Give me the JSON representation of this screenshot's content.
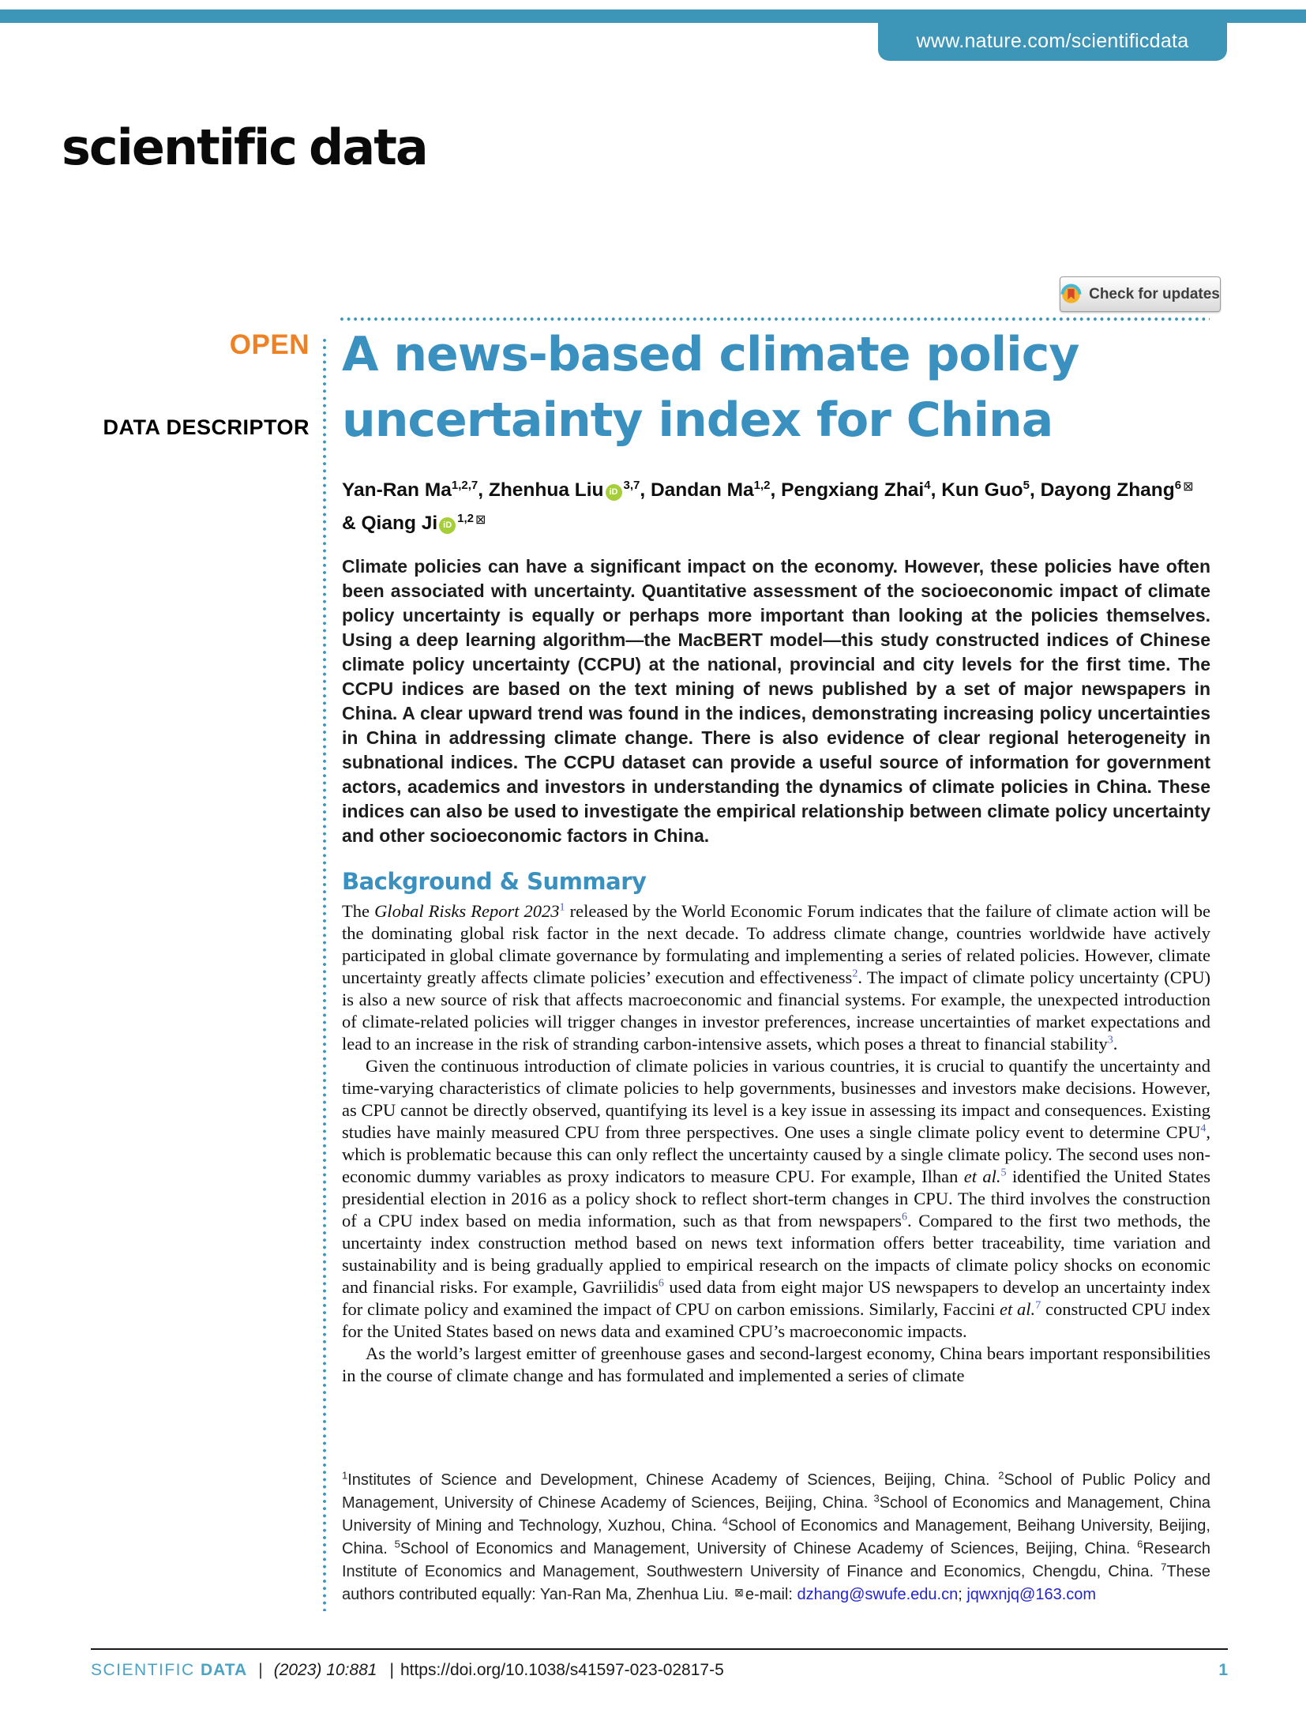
{
  "colors": {
    "brand_teal": "#3d95b8",
    "title_blue": "#3a90be",
    "open_orange": "#f08122",
    "citation_blue": "#4a5fbe",
    "email_link_blue": "#2424cc",
    "orcid_green": "#a6ce39",
    "footer_teal": "#4aa3c4"
  },
  "masthead": {
    "url": "www.nature.com/scientificdata"
  },
  "logo": {
    "word1": "scientific",
    "word2": "data"
  },
  "badges": {
    "check_for_updates": "Check for updates"
  },
  "icons": {
    "orcid": "iD",
    "envelope": "⊠"
  },
  "article": {
    "access": "OPEN",
    "type": "DATA DESCRIPTOR",
    "title_line1": "A news-based climate policy",
    "title_line2": "uncertainty index for China",
    "authors": [
      {
        "name": "Yan-Ran Ma",
        "sup": "1,2,7",
        "sep": ", "
      },
      {
        "name": "Zhenhua Liu",
        "sup": "3,7",
        "sep": ", "
      },
      {
        "name": "Dandan Ma",
        "sup": "1,2",
        "sep": ", "
      },
      {
        "name": "Pengxiang Zhai",
        "sup": "4",
        "sep": ", "
      },
      {
        "name": "Kun Guo",
        "sup": "5",
        "sep": ", "
      },
      {
        "name": "Dayong Zhang",
        "sup": "6",
        "sep": " & "
      },
      {
        "name": "Qiang Ji",
        "sup": "1,2",
        "sep": ""
      }
    ],
    "abstract": "Climate policies can have a significant impact on the economy. However, these policies have often been associated with uncertainty. Quantitative assessment of the socioeconomic impact of climate policy uncertainty is equally or perhaps more important than looking at the policies themselves. Using a deep learning algorithm—the MacBERT model—this study constructed indices of Chinese climate policy uncertainty (CCPU) at the national, provincial and city levels for the first time. The CCPU indices are based on the text mining of news published by a set of major newspapers in China. A clear upward trend was found in the indices, demonstrating increasing policy uncertainties in China in addressing climate change. There is also evidence of clear regional heterogeneity in subnational indices. The CCPU dataset can provide a useful source of information for government actors, academics and investors in understanding the dynamics of climate policies in China. These indices can also be used to investigate the empirical relationship between climate policy uncertainty and other socioeconomic factors in China.",
    "section_heading": "Background & Summary",
    "paragraphs": {
      "p1": [
        {
          "t": "The "
        },
        {
          "t": "Global Risks Report 2023",
          "k": "i"
        },
        {
          "t": "1",
          "k": "sup"
        },
        {
          "t": " released by the World Economic Forum indicates that the failure of climate action will be the dominating global risk factor in the next decade. To address climate change, countries worldwide have actively participated in global climate governance by formulating and implementing a series of related policies. However, climate uncertainty greatly affects climate policies’ execution and effectiveness"
        },
        {
          "t": "2",
          "k": "sup"
        },
        {
          "t": ". The impact of climate policy uncertainty (CPU) is also a new source of risk that affects macroeconomic and financial systems. For example, the unexpected introduction of climate-related policies will trigger changes in investor preferences, increase uncertainties of market expectations and lead to an increase in the risk of stranding carbon-intensive assets, which poses a threat to financial stability"
        },
        {
          "t": "3",
          "k": "sup"
        },
        {
          "t": "."
        }
      ],
      "p2": [
        {
          "t": "Given the continuous introduction of climate policies in various countries, it is crucial to quantify the uncertainty and time-varying characteristics of climate policies to help governments, businesses and investors make decisions. However, as CPU cannot be directly observed, quantifying its level is a key issue in assessing its impact and consequences. Existing studies have mainly measured CPU from three perspectives. One uses a single climate policy event to determine CPU"
        },
        {
          "t": "4",
          "k": "sup"
        },
        {
          "t": ", which is problematic because this can only reflect the uncertainty caused by a single climate policy. The second uses non-economic dummy variables as proxy indicators to measure CPU. For example, Ilhan "
        },
        {
          "t": "et al.",
          "k": "i"
        },
        {
          "t": "5",
          "k": "sup"
        },
        {
          "t": " identified the United States presidential election in 2016 as a policy shock to reflect short-term changes in CPU. The third involves the construction of a CPU index based on media information, such as that from newspapers"
        },
        {
          "t": "6",
          "k": "sup"
        },
        {
          "t": ". Compared to the first two methods, the uncertainty index construction method based on news text information offers better traceability, time variation and sustainability and is being gradually applied to empirical research on the impacts of climate policy shocks on economic and financial risks. For example, Gavriilidis"
        },
        {
          "t": "6",
          "k": "sup"
        },
        {
          "t": " used data from eight major US newspapers to develop an uncertainty index for climate policy and examined the impact of CPU on carbon emissions. Similarly, Faccini "
        },
        {
          "t": "et al.",
          "k": "i"
        },
        {
          "t": "7",
          "k": "sup"
        },
        {
          "t": " constructed CPU index for the United States based on news data and examined CPU’s macroeconomic impacts."
        }
      ],
      "p3": [
        {
          "t": "As the world’s largest emitter of greenhouse gases and second-largest economy, China bears important responsibilities in the course of climate change and has formulated and implemented a series of climate"
        }
      ]
    },
    "footnotes": [
      {
        "t": "1",
        "k": "fn"
      },
      {
        "t": "Institutes of Science and Development, Chinese Academy of Sciences, Beijing, China. "
      },
      {
        "t": "2",
        "k": "fn"
      },
      {
        "t": "School of Public Policy and Management, University of Chinese Academy of Sciences, Beijing, China. "
      },
      {
        "t": "3",
        "k": "fn"
      },
      {
        "t": "School of Economics and Management, China University of Mining and Technology, Xuzhou, China. "
      },
      {
        "t": "4",
        "k": "fn"
      },
      {
        "t": "School of Economics and Management, Beihang University, Beijing, China. "
      },
      {
        "t": "5",
        "k": "fn"
      },
      {
        "t": "School of Economics and Management, University of Chinese Academy of Sciences, Beijing, China. "
      },
      {
        "t": "6",
        "k": "fn"
      },
      {
        "t": "Research Institute of Economics and Management, Southwestern University of Finance and Economics, Chengdu, China. "
      },
      {
        "t": "7",
        "k": "fn"
      },
      {
        "t": "These authors contributed equally: Yan-Ran Ma, Zhenhua Liu. "
      },
      {
        "t": "⊠",
        "k": "env"
      },
      {
        "t": "e-mail: "
      },
      {
        "t": "dzhang@swufe.edu.cn",
        "k": "link"
      },
      {
        "t": "; "
      },
      {
        "t": "jqwxnjq@163.com",
        "k": "link"
      }
    ]
  },
  "footer": {
    "journal_light": "SCIENTIFIC",
    "journal_bold": "DATA",
    "divider": "|",
    "volume": "(2023) 10:881",
    "doi": "https://doi.org/10.1038/s41597-023-02817-5",
    "page": "1"
  }
}
